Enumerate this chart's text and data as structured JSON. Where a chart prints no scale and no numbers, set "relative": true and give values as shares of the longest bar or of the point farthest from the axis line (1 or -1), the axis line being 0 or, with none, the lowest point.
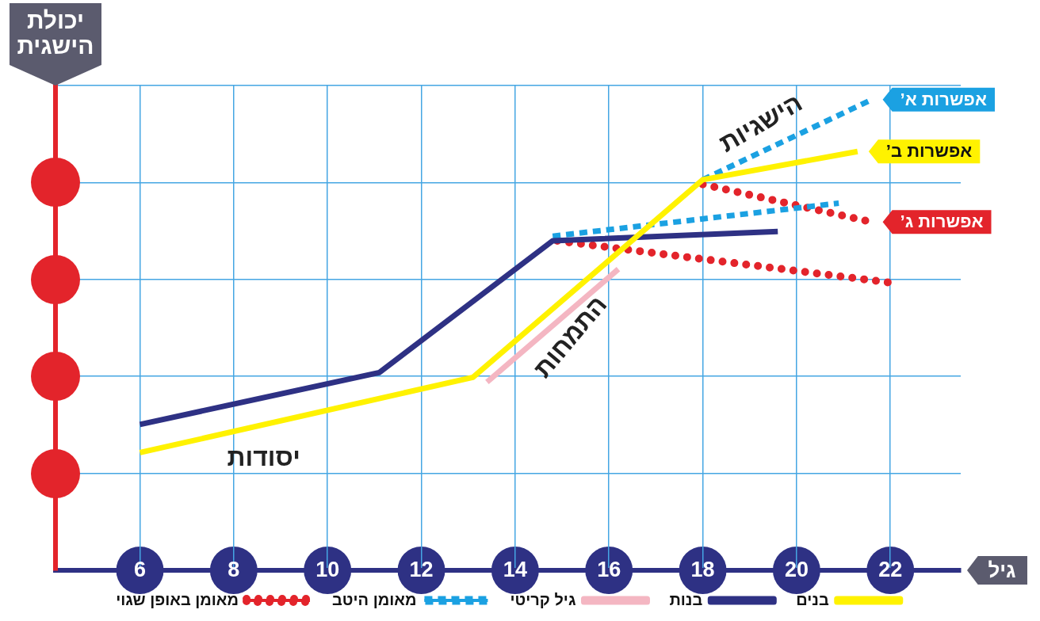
{
  "chart_data": {
    "type": "line",
    "relative": true,
    "ylabel": "יכולת הישגית",
    "xlabel": "גיל",
    "xlim": [
      4.2,
      23.5
    ],
    "xticks": [
      6,
      8,
      10,
      12,
      14,
      16,
      18,
      20,
      22
    ],
    "grid": true,
    "legend": "bottom",
    "marker": "none",
    "series": [
      {
        "name": "בנים",
        "color": "#fff200",
        "x": [
          6,
          13.1,
          18,
          21.3
        ],
        "values": [
          0.25,
          0.41,
          0.83,
          0.89
        ]
      },
      {
        "name": "בנות",
        "color": "#2e3184",
        "x": [
          6,
          11.1,
          14.8,
          19.6
        ],
        "values": [
          0.31,
          0.42,
          0.7,
          0.72
        ]
      },
      {
        "name": "גיל קריטי",
        "color": "#f4b6c2",
        "x": [
          13.4,
          16.2
        ],
        "values": [
          0.4,
          0.64
        ]
      },
      {
        "name": "מאומן היטב",
        "color": "#1ba1e2",
        "line_style": "dashed",
        "x": [
          14.8,
          20.9,
          19.5,
          18,
          21.6
        ],
        "values": [
          0.71,
          0.78,
          null,
          0.83,
          1
        ]
      },
      {
        "name": "מאומן באופן שגוי",
        "color": "#e3242b",
        "line_style": "dotted",
        "x": [
          14.9,
          22.1,
          20,
          18,
          21.6
        ],
        "values": [
          0.7,
          0.61,
          null,
          0.82,
          0.74
        ]
      }
    ],
    "annotations": [
      "יסודות",
      "התמחות",
      "הישגיות",
      "אפשרות א’",
      "אפשרות ב’",
      "אפשרות ג’"
    ]
  }
}
